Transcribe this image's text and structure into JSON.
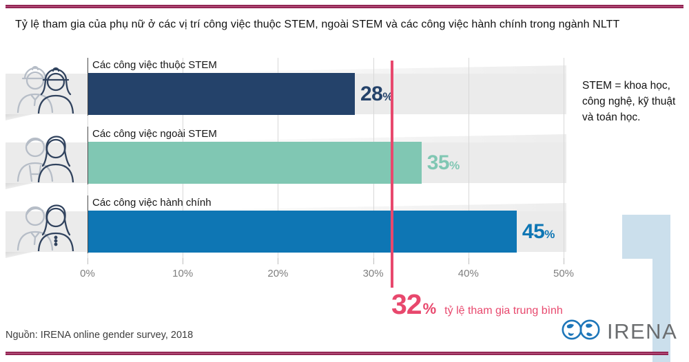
{
  "title": "Tỷ lệ tham gia của phụ nữ ở các vị trí công việc thuộc STEM, ngoài STEM và các công việc hành chính trong ngành NLTT",
  "chart_data": {
    "type": "bar",
    "orientation": "horizontal",
    "title": "Tỷ lệ tham gia của phụ nữ ở các vị trí công việc thuộc STEM, ngoài STEM và các công việc hành chính trong ngành NLTT",
    "categories": [
      "Các công việc thuộc STEM",
      "Các công việc ngoài STEM",
      "Các công việc hành chính"
    ],
    "values": [
      28,
      35,
      45
    ],
    "value_suffix": "%",
    "xlim": [
      0,
      50
    ],
    "x_tick_labels": [
      "0%",
      "10%",
      "20%",
      "30%",
      "40%",
      "50%"
    ],
    "bar_colors": [
      "#24426a",
      "#80c7b3",
      "#0e76b4"
    ],
    "grid": true,
    "legend": "none",
    "reference_line": {
      "value": 32,
      "label": "tỷ lệ tham gia trung bình",
      "color": "#e8486d"
    }
  },
  "bars": [
    {
      "label": "Các công việc thuộc STEM",
      "value": "28",
      "suffix": "%",
      "icon": "male-female-construction-workers"
    },
    {
      "label": "Các công việc ngoài STEM",
      "value": "35",
      "suffix": "%",
      "icon": "male-female-technicians"
    },
    {
      "label": "Các công việc hành chính",
      "value": "45",
      "suffix": "%",
      "icon": "male-female-office-staff"
    }
  ],
  "annotation": {
    "value": "32",
    "suffix": "%",
    "label": "tỷ lệ tham gia trung bình"
  },
  "note": "STEM = khoa học, công nghệ, kỹ thuật và toán học.",
  "source": "Nguồn: IRENA online gender survey, 2018",
  "logo": {
    "text": "IRENA"
  },
  "colors": {
    "bar_stem": "#24426a",
    "bar_non_stem": "#80c7b3",
    "bar_admin": "#0e76b4",
    "reference_pink": "#e8486d",
    "ribbon_maroon": "#8c1e4c",
    "band_gray": "#ebebeb",
    "logo_blue": "#1d76b9",
    "numeral_light_blue": "#cbdfec"
  }
}
